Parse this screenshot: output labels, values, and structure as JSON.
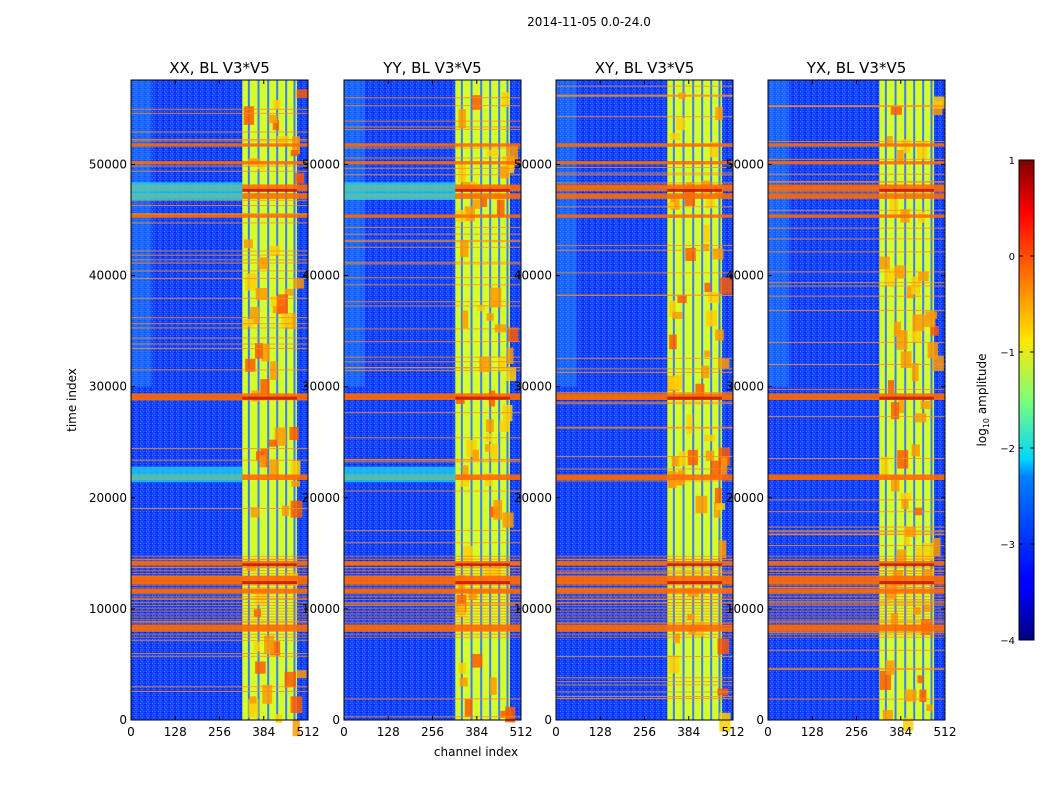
{
  "chart_data": {
    "type": "heatmap",
    "suptitle": "2014-11-05 0.0-24.0",
    "xlabel": "channel index",
    "ylabel": "time index",
    "xlim": [
      0,
      512
    ],
    "ylim": [
      0,
      57600
    ],
    "xticks": [
      "0",
      "128",
      "256",
      "384",
      "512"
    ],
    "xtick_values": [
      0,
      128,
      256,
      384,
      512
    ],
    "yticks": [
      "0",
      "10000",
      "20000",
      "30000",
      "40000",
      "50000"
    ],
    "ytick_values": [
      0,
      10000,
      20000,
      30000,
      40000,
      50000
    ],
    "panels": [
      {
        "title": "XX, BL V3*V5",
        "pol": "XX"
      },
      {
        "title": "YY, BL V3*V5",
        "pol": "YY"
      },
      {
        "title": "XY, BL V3*V5",
        "pol": "XY"
      },
      {
        "title": "YX, BL V3*V5",
        "pol": "YX"
      }
    ],
    "colorbar": {
      "label_prefix": "log",
      "label_sub": "10",
      "label_suffix": " amplitude",
      "range": [
        -4,
        1
      ],
      "ticks": [
        "1",
        "0",
        "−1",
        "−2",
        "−3",
        "−4"
      ],
      "tick_values": [
        1,
        0,
        -1,
        -2,
        -3,
        -4
      ],
      "colormap": "jet"
    },
    "rfi_channel_band": [
      322,
      480
    ],
    "strong_time_bands": [
      [
        8000,
        8600
      ],
      [
        11400,
        11800
      ],
      [
        12200,
        13000
      ],
      [
        13900,
        14300
      ],
      [
        21600,
        22100
      ],
      [
        28800,
        29400
      ],
      [
        45200,
        45500
      ],
      [
        46900,
        47400
      ],
      [
        47600,
        48200
      ],
      [
        50000,
        50300
      ],
      [
        51600,
        51900
      ]
    ]
  }
}
